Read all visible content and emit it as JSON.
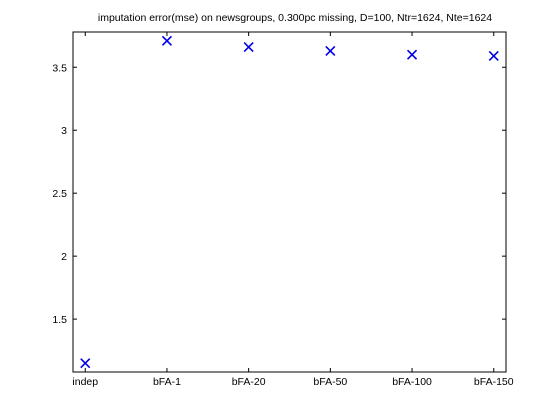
{
  "chart_data": {
    "type": "scatter",
    "title": "imputation error(mse) on newsgroups, 0.300pc missing, D=100, Ntr=1624, Nte=1624",
    "xlabel": "",
    "ylabel": "",
    "categories": [
      "indep",
      "bFA-1",
      "bFA-20",
      "bFA-50",
      "bFA-100",
      "bFA-150"
    ],
    "values": [
      1.15,
      3.71,
      3.66,
      3.63,
      3.6,
      3.59
    ],
    "xlim": [
      -0.15,
      5.15
    ],
    "ylim": [
      1.08,
      3.78
    ],
    "yticks": [
      1.5,
      2,
      2.5,
      3,
      3.5
    ],
    "ytick_labels": [
      "1.5",
      "2",
      "2.5",
      "3",
      "3.5"
    ],
    "marker": "x",
    "marker_color": "#0000e6",
    "grid": false,
    "legend": "none"
  }
}
